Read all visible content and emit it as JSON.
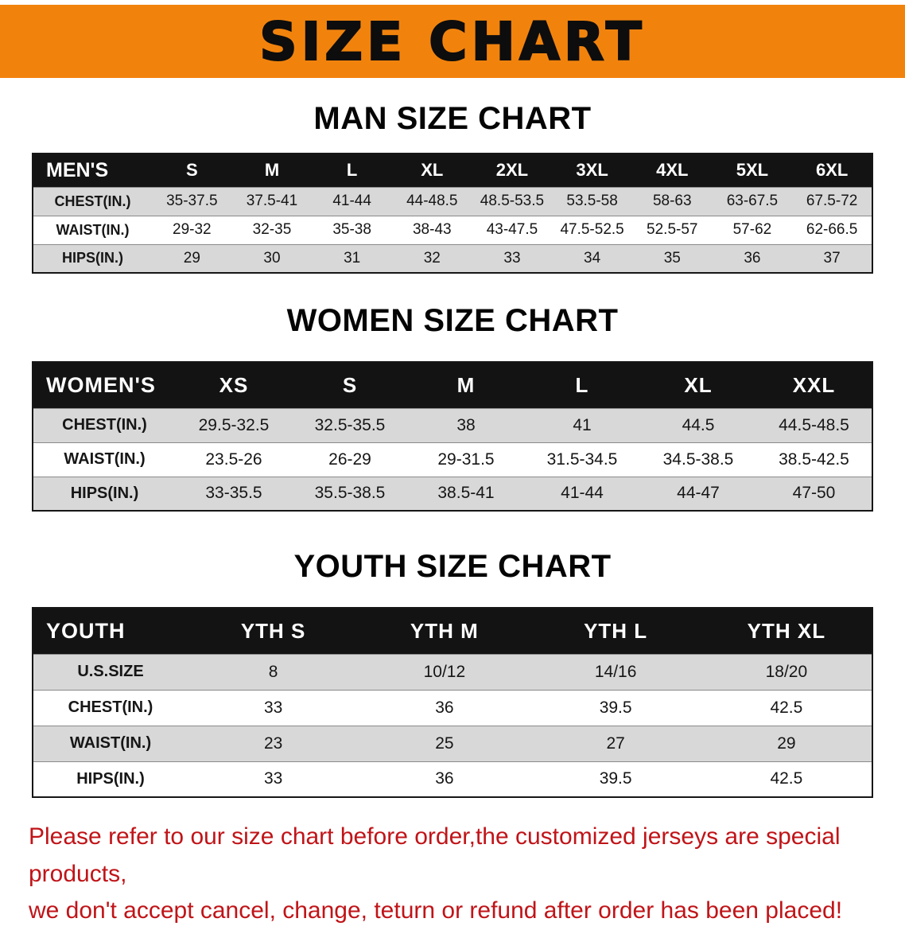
{
  "banner": {
    "title": "SIZE CHART"
  },
  "sections": {
    "men": {
      "heading": "MAN SIZE CHART",
      "table": {
        "header": [
          "MEN'S",
          "S",
          "M",
          "L",
          "XL",
          "2XL",
          "3XL",
          "4XL",
          "5XL",
          "6XL"
        ],
        "rows": [
          [
            "CHEST(IN.)",
            "35-37.5",
            "37.5-41",
            "41-44",
            "44-48.5",
            "48.5-53.5",
            "53.5-58",
            "58-63",
            "63-67.5",
            "67.5-72"
          ],
          [
            "WAIST(IN.)",
            "29-32",
            "32-35",
            "35-38",
            "38-43",
            "43-47.5",
            "47.5-52.5",
            "52.5-57",
            "57-62",
            "62-66.5"
          ],
          [
            "HIPS(IN.)",
            "29",
            "30",
            "31",
            "32",
            "33",
            "34",
            "35",
            "36",
            "37"
          ]
        ]
      }
    },
    "women": {
      "heading": "WOMEN SIZE CHART",
      "table": {
        "header": [
          "WOMEN'S",
          "XS",
          "S",
          "M",
          "L",
          "XL",
          "XXL"
        ],
        "rows": [
          [
            "CHEST(IN.)",
            "29.5-32.5",
            "32.5-35.5",
            "38",
            "41",
            "44.5",
            "44.5-48.5"
          ],
          [
            "WAIST(IN.)",
            "23.5-26",
            "26-29",
            "29-31.5",
            "31.5-34.5",
            "34.5-38.5",
            "38.5-42.5"
          ],
          [
            "HIPS(IN.)",
            "33-35.5",
            "35.5-38.5",
            "38.5-41",
            "41-44",
            "44-47",
            "47-50"
          ]
        ]
      }
    },
    "youth": {
      "heading": "YOUTH SIZE CHART",
      "table": {
        "header": [
          "YOUTH",
          "YTH S",
          "YTH M",
          "YTH L",
          "YTH XL"
        ],
        "rows": [
          [
            "U.S.SIZE",
            "8",
            "10/12",
            "14/16",
            "18/20"
          ],
          [
            "CHEST(IN.)",
            "33",
            "36",
            "39.5",
            "42.5"
          ],
          [
            "WAIST(IN.)",
            "23",
            "25",
            "27",
            "29"
          ],
          [
            "HIPS(IN.)",
            "33",
            "36",
            "39.5",
            "42.5"
          ]
        ]
      }
    }
  },
  "footer": {
    "line1": "Please refer to our size chart before order,the customized jerseys are special products,",
    "line2": "we don't accept cancel, change, teturn or refund after order has been placed!"
  },
  "colors": {
    "banner_bg": "#f1830d",
    "table_header_bg": "#131313",
    "table_header_text": "#ffffff",
    "row_stripe": "#d8d8d8",
    "note_red": "#c01418"
  }
}
